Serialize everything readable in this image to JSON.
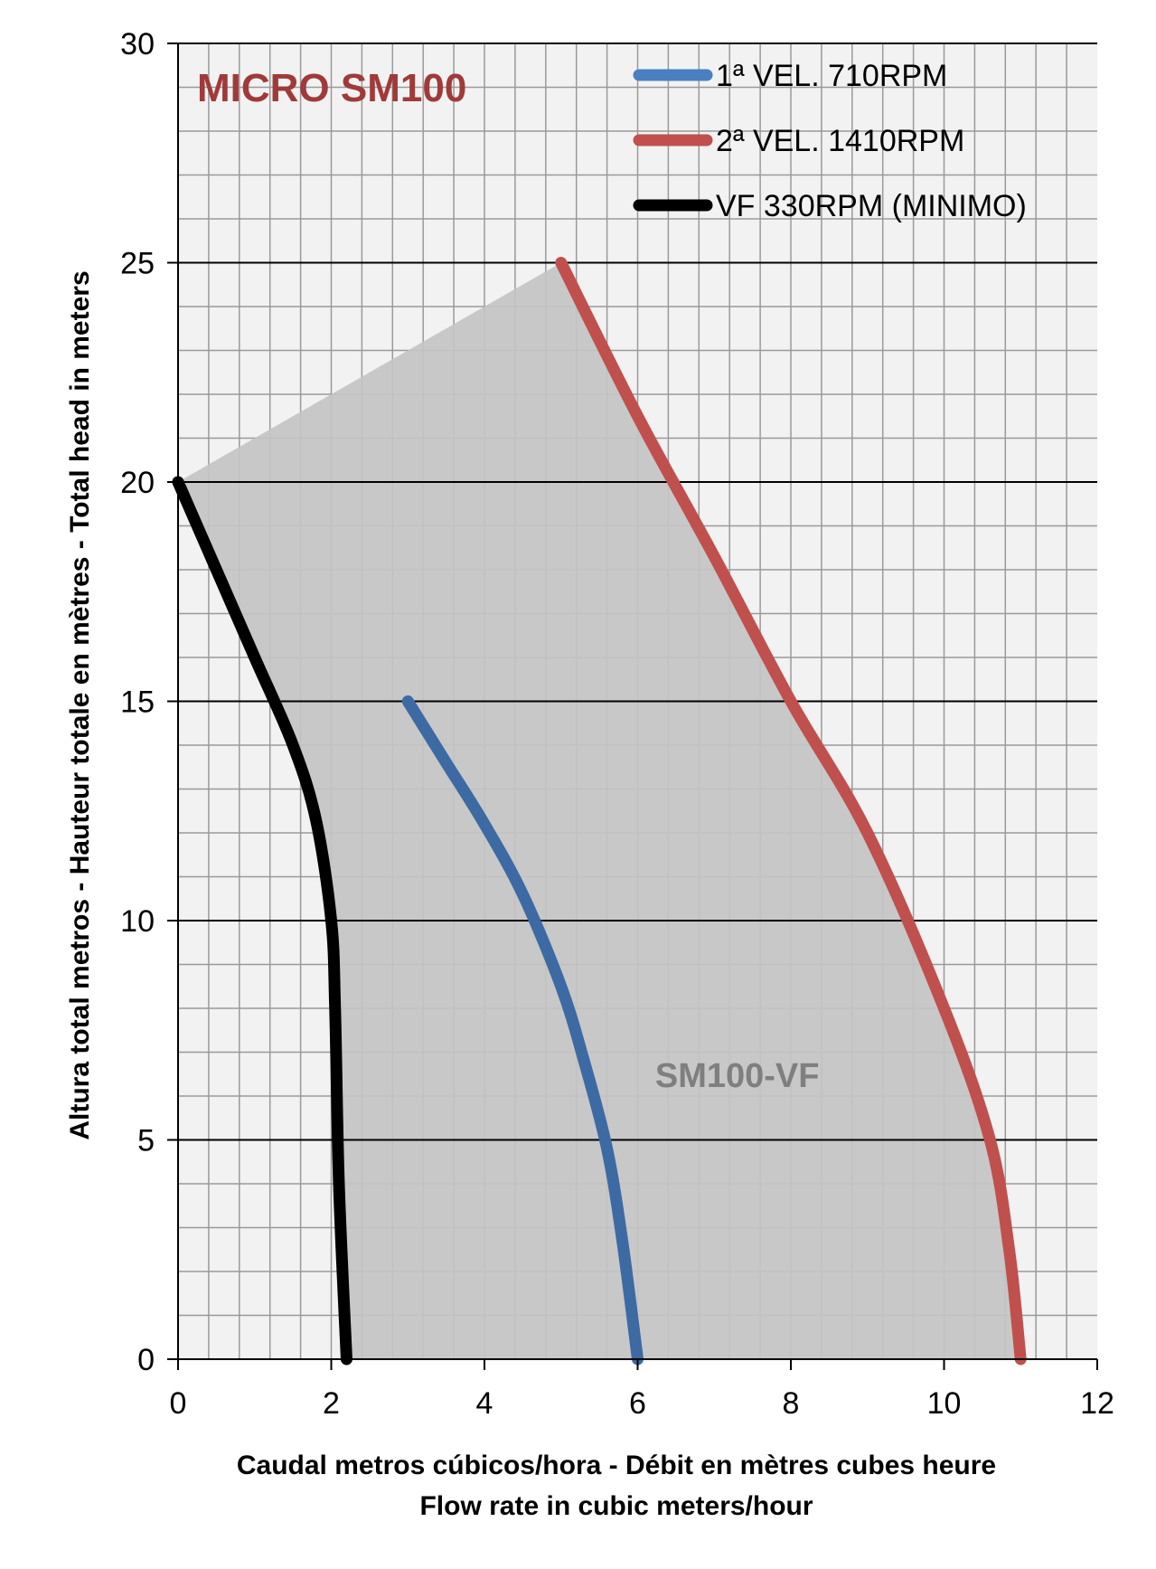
{
  "chart_data": {
    "type": "line",
    "title": "MICRO SM100",
    "title_color": "#a03a3a",
    "xlabel_line1": "Caudal metros cúbicos/hora - Débit en mètres cubes heure",
    "xlabel_line2": "Flow rate in cubic meters/hour",
    "ylabel": "Altura total metros - Hauteur totale en mètres - Total head in meters",
    "xlim": [
      0,
      12
    ],
    "ylim": [
      0,
      30
    ],
    "xticks": [
      0,
      2,
      4,
      6,
      8,
      10,
      12
    ],
    "yticks": [
      0,
      5,
      10,
      15,
      20,
      25,
      30
    ],
    "x_minor_step": 0.4,
    "y_minor_step": 1,
    "grid": true,
    "legend_position": "top-right",
    "plot_background": "#f2f2f2",
    "region": {
      "label": "SM100-VF",
      "label_color": "#7f7f7f",
      "label_at": [
        7.3,
        6.5
      ],
      "fill": "#c4c4c4",
      "polygon": [
        [
          0,
          20
        ],
        [
          5,
          25
        ],
        [
          6,
          21.5
        ],
        [
          7,
          18.3
        ],
        [
          8,
          15
        ],
        [
          9,
          12
        ],
        [
          10,
          8
        ],
        [
          10.6,
          5
        ],
        [
          10.85,
          2.5
        ],
        [
          11,
          0
        ],
        [
          2.2,
          0
        ],
        [
          2.1,
          4
        ],
        [
          2.05,
          8
        ],
        [
          1.9,
          11
        ],
        [
          1.5,
          14
        ],
        [
          1,
          16
        ],
        [
          0.5,
          18
        ],
        [
          0,
          20
        ]
      ]
    },
    "series": [
      {
        "name": "1ª VEL. 710RPM",
        "color": "#3d6aa3",
        "legend_color": "#4a7fc1",
        "x": [
          3,
          3.5,
          4,
          4.5,
          5,
          5.3,
          5.6,
          5.8,
          6.0
        ],
        "y": [
          15,
          13.6,
          12.2,
          10.6,
          8.5,
          6.8,
          4.8,
          2.7,
          0
        ]
      },
      {
        "name": "2ª VEL. 1410RPM",
        "color": "#c0504d",
        "legend_color": "#c0504d",
        "x": [
          5,
          6,
          7,
          8,
          9,
          10,
          10.6,
          10.85,
          11
        ],
        "y": [
          25,
          21.5,
          18.3,
          15,
          12,
          8,
          5,
          2.5,
          0
        ]
      },
      {
        "name": "VF 330RPM (MINIMO)",
        "color": "#000000",
        "legend_color": "#000000",
        "x": [
          0,
          0.5,
          1,
          1.5,
          1.8,
          2.0,
          2.05,
          2.1,
          2.2
        ],
        "y": [
          20,
          18,
          16,
          14,
          12.3,
          10,
          8,
          4,
          0
        ]
      }
    ]
  }
}
